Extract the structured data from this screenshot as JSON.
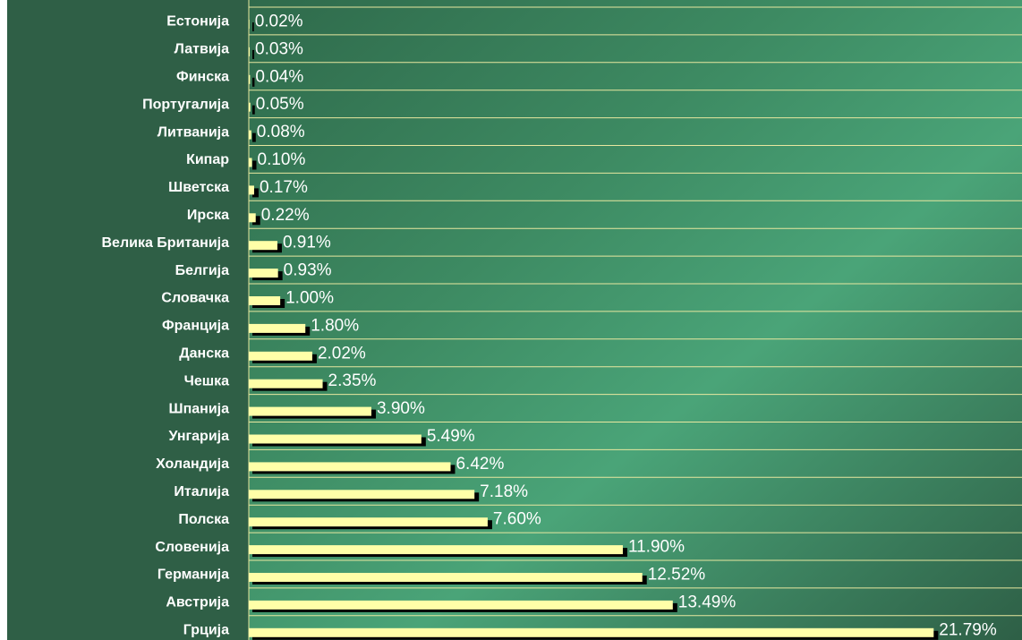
{
  "chart_data": {
    "type": "barh",
    "categories": [
      "Естонија",
      "Латвија",
      "Финска",
      "Португалија",
      "Литванија",
      "Кипар",
      "Шветска",
      "Ирска",
      "Велика Британија",
      "Белгија",
      "Словачка",
      "Франција",
      "Данска",
      "Чешка",
      "Шпанија",
      "Унгарија",
      "Холандија",
      "Италија",
      "Полска",
      "Словенија",
      "Германија",
      "Австрија",
      "Грција"
    ],
    "values": [
      0.02,
      0.03,
      0.04,
      0.05,
      0.08,
      0.1,
      0.17,
      0.22,
      0.91,
      0.93,
      1.0,
      1.8,
      2.02,
      2.35,
      3.9,
      5.49,
      6.42,
      7.18,
      7.6,
      11.9,
      12.52,
      13.49,
      21.79
    ],
    "value_labels": [
      "0.02%",
      "0.03%",
      "0.04%",
      "0.05%",
      "0.08%",
      "0.10%",
      "0.17%",
      "0.22%",
      "0.91%",
      "0.93%",
      "1.00%",
      "1.80%",
      "2.02%",
      "2.35%",
      "3.90%",
      "5.49%",
      "6.42%",
      "7.18%",
      "7.60%",
      "11.90%",
      "12.52%",
      "13.49%",
      "21.79%"
    ],
    "color": "#ffffa8",
    "xlim": [
      0,
      24.6
    ],
    "grid": true
  }
}
